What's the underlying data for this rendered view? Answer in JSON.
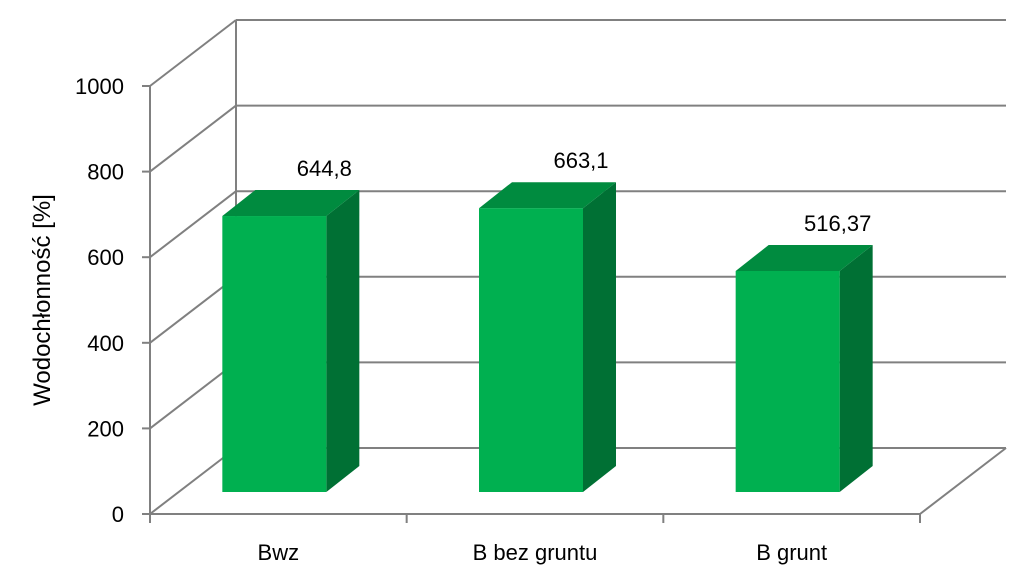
{
  "chart_data": {
    "type": "bar",
    "title": "",
    "xlabel": "",
    "ylabel": "Wodochłonność [%]",
    "categories": [
      "Bwz",
      "B bez gruntu",
      "B grunt"
    ],
    "values": [
      644.8,
      663.1,
      516.37
    ],
    "data_labels": [
      "644,8",
      "663,1",
      "516,37"
    ],
    "ylim": [
      0,
      1000
    ],
    "yticks": [
      0,
      200,
      400,
      600,
      800,
      1000
    ],
    "ytick_labels": [
      "0",
      "200",
      "400",
      "600",
      "800",
      "1000"
    ],
    "grid": true,
    "legend": "none",
    "style": "3d",
    "colors": {
      "bar_front": "#00b050",
      "bar_top": "#008b3f",
      "bar_side": "#007034",
      "gridline": "#808080"
    }
  }
}
